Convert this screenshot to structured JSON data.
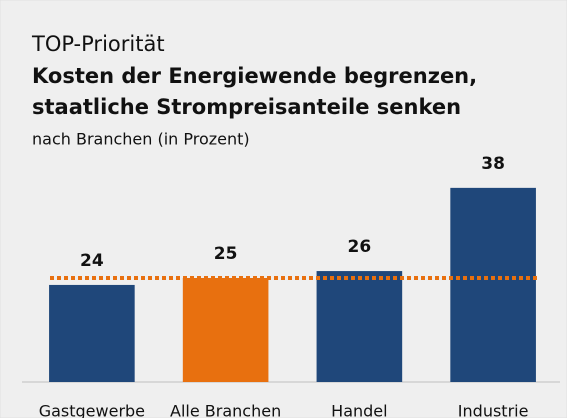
{
  "chart_data": {
    "type": "bar",
    "kicker": "TOP-Priorität",
    "title": [
      "Kosten der Energiewende begrenzen,",
      "staatliche Strompreisanteile senken"
    ],
    "subtitle": "nach Branchen (in Prozent)",
    "categories": [
      "Gastgewerbe",
      "Alle Branchen",
      "Handel",
      "Industrie"
    ],
    "values": [
      24,
      25,
      26,
      38
    ],
    "colors": [
      "#1f477a",
      "#e8700f",
      "#1f477a",
      "#1f477a"
    ],
    "reference_line": {
      "value": 25,
      "color": "#e8700f"
    },
    "ylim": [
      10,
      40
    ]
  }
}
